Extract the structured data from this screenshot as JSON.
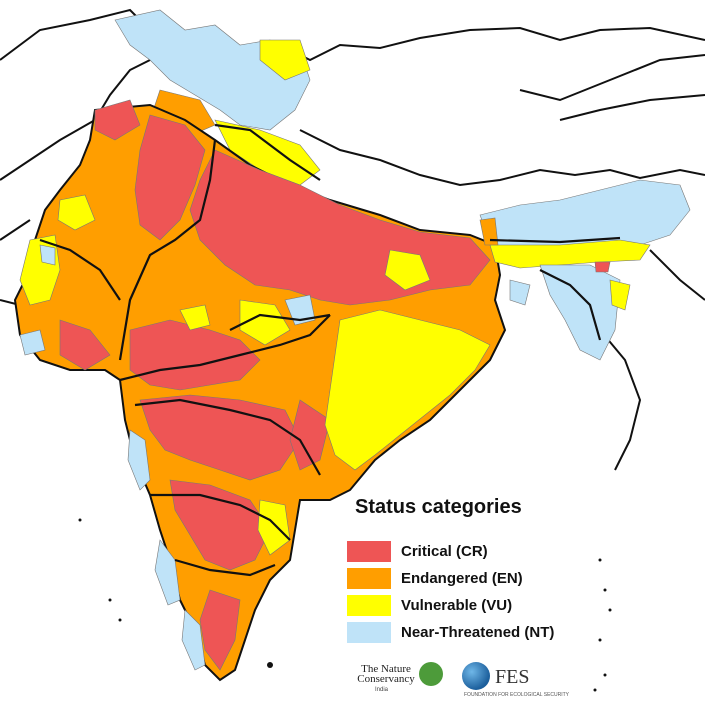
{
  "legend": {
    "title": "Status categories",
    "items": [
      {
        "label": "Critical  (CR)",
        "color": "#ee5555"
      },
      {
        "label": "Endangered (EN)",
        "color": "#ff9e00"
      },
      {
        "label": "Vulnerable (VU)",
        "color": "#ffff00"
      },
      {
        "label": "Near-Threatened (NT)",
        "color": "#bfe3f8"
      }
    ]
  },
  "logos": {
    "tnc_name": "The Nature Conservancy",
    "tnc_sub": "India",
    "fes_name": "FES",
    "fes_sub": "FOUNDATION FOR ECOLOGICAL SECURITY"
  },
  "map": {
    "region": "Indian subcontinent river sub-basins",
    "colors": {
      "critical": "#ee5555",
      "endangered": "#ff9e00",
      "vulnerable": "#ffff00",
      "near_threatened": "#bfe3f8",
      "basin_border": "#000000",
      "catchment_line": "#777777",
      "background": "#ffffff"
    }
  }
}
